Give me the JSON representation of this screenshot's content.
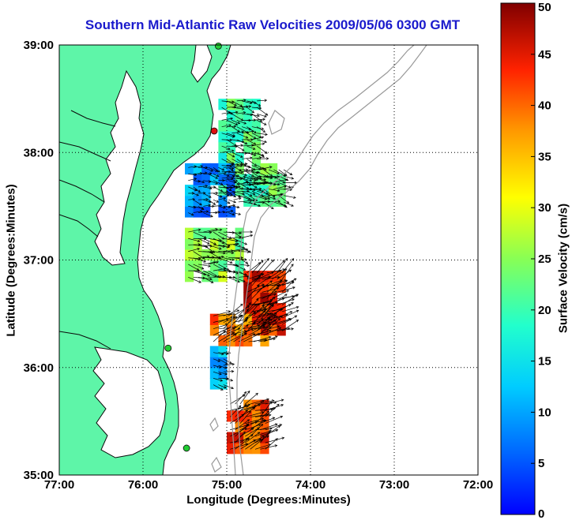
{
  "chart_data": {
    "type": "heatmap",
    "title": "Southern Mid-Atlantic Raw Velocities 2009/05/06 0300 GMT",
    "xlabel": "Longitude (Degrees:Minutes)",
    "ylabel": "Latitude (Degrees:Minutes)",
    "colorbar_label": "Surface Velocity (cm/s)",
    "xlim": [
      -77,
      -72
    ],
    "ylim": [
      35,
      39
    ],
    "clim": [
      0,
      50
    ],
    "x_ticks": [
      {
        "value": -77,
        "label": "77:00"
      },
      {
        "value": -76,
        "label": "76:00"
      },
      {
        "value": -75,
        "label": "75:00"
      },
      {
        "value": -74,
        "label": "74:00"
      },
      {
        "value": -73,
        "label": "73:00"
      },
      {
        "value": -72,
        "label": "72:00"
      }
    ],
    "y_ticks": [
      {
        "value": 35,
        "label": "35:00"
      },
      {
        "value": 36,
        "label": "36:00"
      },
      {
        "value": 37,
        "label": "37:00"
      },
      {
        "value": 38,
        "label": "38:00"
      },
      {
        "value": 39,
        "label": "39:00"
      }
    ],
    "colorbar_ticks": [
      {
        "value": 0,
        "label": "0"
      },
      {
        "value": 5,
        "label": "5"
      },
      {
        "value": 10,
        "label": "10"
      },
      {
        "value": 15,
        "label": "15"
      },
      {
        "value": 20,
        "label": "20"
      },
      {
        "value": 25,
        "label": "25"
      },
      {
        "value": 30,
        "label": "30"
      },
      {
        "value": 35,
        "label": "35"
      },
      {
        "value": 40,
        "label": "40"
      },
      {
        "value": 45,
        "label": "45"
      },
      {
        "value": 50,
        "label": "50"
      }
    ],
    "grid": true,
    "colormap": "jet",
    "colors": {
      "land": "#5ef5a8",
      "coast": "#0a0a0a",
      "isobath": "#999999",
      "arrow": "#000000",
      "station_green": "#22cc33",
      "station_red": "#e01010",
      "title": "#1a1acc"
    },
    "velocity_regions": [
      {
        "lon": [
          -75.1,
          -74.6
        ],
        "lat": [
          37.6,
          38.5
        ],
        "speed": 20
      },
      {
        "lon": [
          -75.5,
          -74.9
        ],
        "lat": [
          37.4,
          37.9
        ],
        "speed": 9
      },
      {
        "lon": [
          -74.9,
          -74.3
        ],
        "lat": [
          37.5,
          37.9
        ],
        "speed": 22
      },
      {
        "lon": [
          -75.5,
          -74.8
        ],
        "lat": [
          36.8,
          37.3
        ],
        "speed": 25
      },
      {
        "lon": [
          -74.8,
          -74.3
        ],
        "lat": [
          36.3,
          36.9
        ],
        "speed": 44
      },
      {
        "lon": [
          -75.2,
          -74.5
        ],
        "lat": [
          36.2,
          36.5
        ],
        "speed": 40
      },
      {
        "lon": [
          -75.0,
          -74.5
        ],
        "lat": [
          35.2,
          35.7
        ],
        "speed": 42
      },
      {
        "lon": [
          -75.2,
          -75.0
        ],
        "lat": [
          35.8,
          36.2
        ],
        "speed": 12
      }
    ],
    "stations": [
      {
        "lon": -75.1,
        "lat": 38.99,
        "color": "green"
      },
      {
        "lon": -75.15,
        "lat": 38.2,
        "color": "red"
      },
      {
        "lon": -75.7,
        "lat": 36.18,
        "color": "green"
      },
      {
        "lon": -75.48,
        "lat": 35.25,
        "color": "green"
      }
    ]
  }
}
